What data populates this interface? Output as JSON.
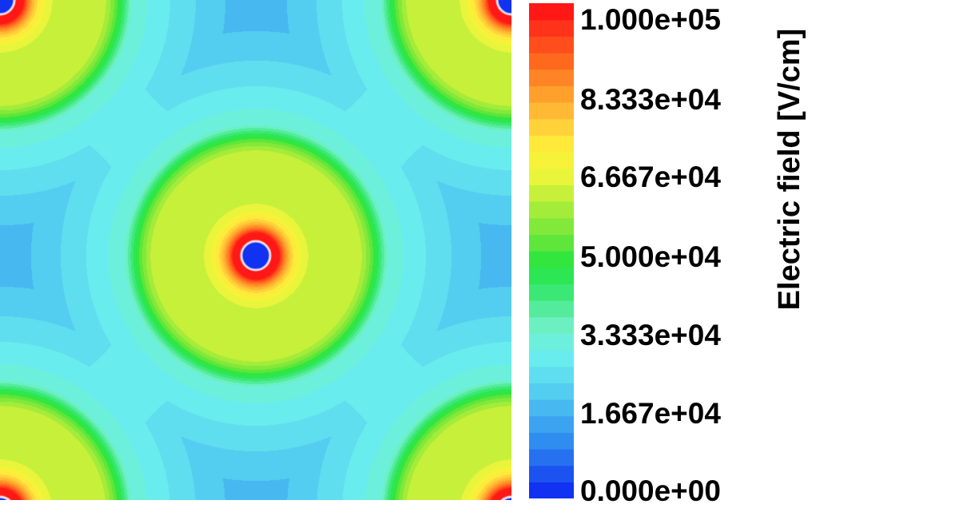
{
  "chart_data": {
    "type": "heatmap",
    "title": "",
    "xlabel": "",
    "ylabel": "",
    "colorbar": {
      "label": "Electric field [V/cm]",
      "range": [
        0,
        100000
      ],
      "levels": 30,
      "tick_labels": [
        "1.000e+05",
        "8.333e+04",
        "6.667e+04",
        "5.000e+04",
        "3.333e+04",
        "1.667e+04",
        "0.000e+00"
      ],
      "tick_values": [
        100000,
        83333,
        66667,
        50000,
        33333,
        16667,
        0
      ],
      "colormap": [
        "#0b22f0",
        "#1f5cf0",
        "#2f8ef0",
        "#44b4f0",
        "#5ad8f0",
        "#6cf0ec",
        "#6cf0c0",
        "#3ee87a",
        "#22e63e",
        "#6ee63a",
        "#a8ec3a",
        "#e8f53a",
        "#fff03a",
        "#ffc83a",
        "#ff9a2a",
        "#ff6a1e",
        "#ff3a1a",
        "#ff0a14"
      ]
    },
    "field_sources": [
      {
        "position": "top-left-corner",
        "type": "peak-ring"
      },
      {
        "position": "top-right-corner",
        "type": "peak-ring"
      },
      {
        "position": "bottom-left-corner",
        "type": "peak-ring"
      },
      {
        "position": "bottom-right-corner",
        "type": "peak-ring"
      },
      {
        "position": "center",
        "type": "peak-ring"
      }
    ],
    "field_minima": [
      {
        "position": "top-middle"
      },
      {
        "position": "bottom-middle"
      },
      {
        "position": "left-middle"
      },
      {
        "position": "right-middle"
      }
    ]
  }
}
